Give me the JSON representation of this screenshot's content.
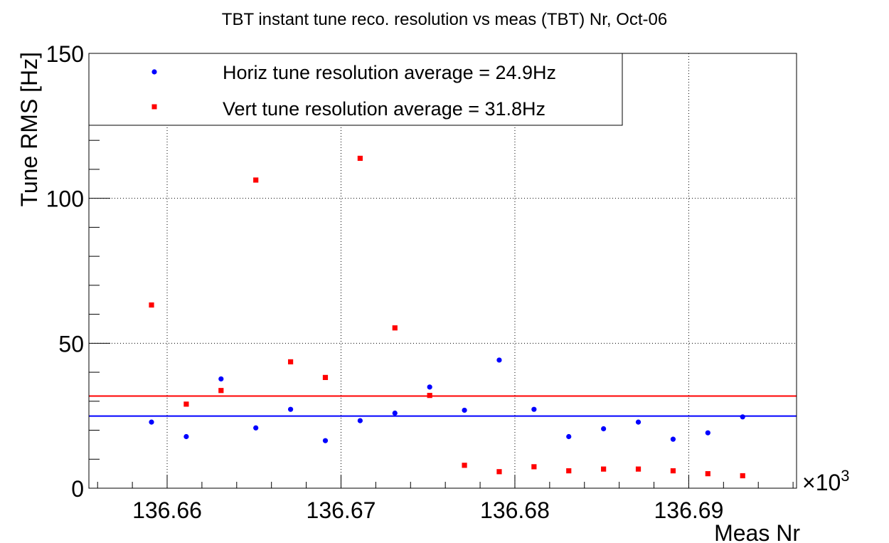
{
  "chart_data": {
    "type": "scatter",
    "title": "TBT instant tune reco. resolution vs meas (TBT) Nr, Oct-06",
    "xlabel": "Meas Nr",
    "ylabel": "Tune RMS [Hz]",
    "x_multiplier_label": "×10",
    "x_multiplier_exponent": "3",
    "xlim": [
      136.6555,
      136.6962
    ],
    "ylim": [
      0,
      150
    ],
    "x_ticks": [
      136.66,
      136.67,
      136.68,
      136.69
    ],
    "x_tick_labels": [
      "136.66",
      "136.67",
      "136.68",
      "136.69"
    ],
    "y_ticks": [
      0,
      50,
      100,
      150
    ],
    "y_tick_labels": [
      "0",
      "50",
      "100",
      "150"
    ],
    "grid": true,
    "legend_position": "top-left",
    "series": [
      {
        "name": "Horiz tune resolution average = 24.9Hz",
        "color": "#0000ff",
        "marker": "circle",
        "average": 24.9,
        "points": [
          [
            136.6591,
            22.8
          ],
          [
            136.6611,
            17.8
          ],
          [
            136.6631,
            37.7
          ],
          [
            136.6651,
            20.8
          ],
          [
            136.6671,
            27.2
          ],
          [
            136.6691,
            16.4
          ],
          [
            136.6711,
            23.3
          ],
          [
            136.6731,
            25.9
          ],
          [
            136.6751,
            34.9
          ],
          [
            136.6771,
            26.9
          ],
          [
            136.6791,
            44.2
          ],
          [
            136.6811,
            27.2
          ],
          [
            136.6831,
            17.8
          ],
          [
            136.6851,
            20.5
          ],
          [
            136.6871,
            22.8
          ],
          [
            136.6891,
            16.9
          ],
          [
            136.6911,
            19.1
          ],
          [
            136.6931,
            24.6
          ]
        ]
      },
      {
        "name": "Vert tune resolution average = 31.8Hz",
        "color": "#ff0000",
        "marker": "square",
        "average": 31.8,
        "points": [
          [
            136.6591,
            63.2
          ],
          [
            136.6611,
            29.0
          ],
          [
            136.6631,
            33.7
          ],
          [
            136.6651,
            106.3
          ],
          [
            136.6671,
            43.6
          ],
          [
            136.6691,
            38.2
          ],
          [
            136.6711,
            113.8
          ],
          [
            136.6731,
            55.3
          ],
          [
            136.6751,
            32.0
          ],
          [
            136.6771,
            7.9
          ],
          [
            136.6791,
            5.7
          ],
          [
            136.6811,
            7.4
          ],
          [
            136.6831,
            6.0
          ],
          [
            136.6851,
            6.6
          ],
          [
            136.6871,
            6.6
          ],
          [
            136.6891,
            6.0
          ],
          [
            136.6911,
            5.0
          ],
          [
            136.6931,
            4.3
          ]
        ]
      }
    ]
  }
}
